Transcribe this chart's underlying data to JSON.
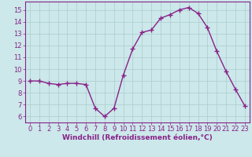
{
  "x": [
    0,
    1,
    2,
    3,
    4,
    5,
    6,
    7,
    8,
    9,
    10,
    11,
    12,
    13,
    14,
    15,
    16,
    17,
    18,
    19,
    20,
    21,
    22,
    23
  ],
  "y": [
    9,
    9,
    8.8,
    8.7,
    8.8,
    8.8,
    8.7,
    6.7,
    6.0,
    6.7,
    9.5,
    11.7,
    13.1,
    13.3,
    14.3,
    14.6,
    15.0,
    15.2,
    14.7,
    13.5,
    11.5,
    9.8,
    8.3,
    6.9
  ],
  "line_color": "#882288",
  "marker": "+",
  "marker_size": 4,
  "linewidth": 1.0,
  "bg_color": "#cce8ea",
  "grid_color": "#aacccc",
  "xlabel": "Windchill (Refroidissement éolien,°C)",
  "xlabel_fontsize": 6.5,
  "tick_fontsize": 6.0,
  "xlim": [
    -0.5,
    23.5
  ],
  "ylim": [
    5.5,
    15.7
  ],
  "yticks": [
    6,
    7,
    8,
    9,
    10,
    11,
    12,
    13,
    14,
    15
  ],
  "xticks": [
    0,
    1,
    2,
    3,
    4,
    5,
    6,
    7,
    8,
    9,
    10,
    11,
    12,
    13,
    14,
    15,
    16,
    17,
    18,
    19,
    20,
    21,
    22,
    23
  ]
}
